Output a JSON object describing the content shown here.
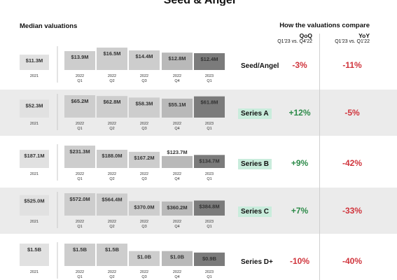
{
  "header": {
    "title_sliver": "Seed & Angel valuations",
    "left": "Median valuations",
    "right": "How the valuations compare",
    "qoq_label": "QoQ",
    "qoq_sub": "Q1'23 vs. Q4'22",
    "yoy_label": "YoY",
    "yoy_sub": "Q1'23 vs. Q1'22"
  },
  "colors": {
    "bar_2021": "#e1e1e1",
    "bar_2022": "#cdcdcd",
    "bar_2022q4": "#b9b9b9",
    "bar_2023": "#7b7b7b",
    "positive": "#2e8b4a",
    "negative": "#d0343c",
    "highlight": "#c9ecdc",
    "row_shade": "#ebebeb"
  },
  "chart_data": [
    {
      "type": "bar",
      "stage": "Seed/Angel",
      "highlight": false,
      "categories": [
        "2021",
        "2022 Q1",
        "2022 Q2",
        "2022 Q3",
        "2022 Q4",
        "2023 Q1"
      ],
      "values": [
        11.3,
        13.9,
        16.5,
        14.4,
        12.8,
        12.4
      ],
      "labels": [
        "$11.3M",
        "$13.9M",
        "$16.5M",
        "$14.4M",
        "$12.8M",
        "$12.4M"
      ],
      "qoq": "-3%",
      "qoq_positive": false,
      "yoy": "-11%",
      "yoy_positive": false
    },
    {
      "type": "bar",
      "stage": "Series A",
      "highlight": true,
      "categories": [
        "2021",
        "2022 Q1",
        "2022 Q2",
        "2022 Q3",
        "2022 Q4",
        "2023 Q1"
      ],
      "values": [
        52.3,
        65.2,
        62.8,
        58.3,
        55.1,
        61.8
      ],
      "labels": [
        "$52.3M",
        "$65.2M",
        "$62.8M",
        "$58.3M",
        "$55.1M",
        "$61.8M"
      ],
      "qoq": "+12%",
      "qoq_positive": true,
      "yoy": "-5%",
      "yoy_positive": false
    },
    {
      "type": "bar",
      "stage": "Series B",
      "highlight": true,
      "categories": [
        "2021",
        "2022 Q1",
        "2022 Q2",
        "2022 Q3",
        "2022 Q4",
        "2023 Q1"
      ],
      "values": [
        187.1,
        231.3,
        188.0,
        167.2,
        123.7,
        134.7
      ],
      "labels": [
        "$187.1M",
        "$231.3M",
        "$188.0M",
        "$167.2M",
        "$123.7M",
        "$134.7M"
      ],
      "qoq": "+9%",
      "qoq_positive": true,
      "yoy": "-42%",
      "yoy_positive": false
    },
    {
      "type": "bar",
      "stage": "Series C",
      "highlight": true,
      "categories": [
        "2021",
        "2022 Q1",
        "2022 Q2",
        "2022 Q3",
        "2022 Q4",
        "2023 Q1"
      ],
      "values": [
        525.0,
        572.0,
        564.4,
        370.0,
        360.2,
        384.8
      ],
      "labels": [
        "$525.0M",
        "$572.0M",
        "$564.4M",
        "$370.0M",
        "$360.2M",
        "$384.8M"
      ],
      "qoq": "+7%",
      "qoq_positive": true,
      "yoy": "-33%",
      "yoy_positive": false
    },
    {
      "type": "bar",
      "stage": "Series D+",
      "highlight": false,
      "categories": [
        "2021",
        "2022 Q1",
        "2022 Q2",
        "2022 Q3",
        "2022 Q4",
        "2023 Q1"
      ],
      "values": [
        1.5,
        1.5,
        1.5,
        1.0,
        1.0,
        0.9
      ],
      "labels": [
        "$1.5B",
        "$1.5B",
        "$1.5B",
        "$1.0B",
        "$1.0B",
        "$0.9B"
      ],
      "qoq": "-10%",
      "qoq_positive": false,
      "yoy": "-40%",
      "yoy_positive": false
    }
  ]
}
